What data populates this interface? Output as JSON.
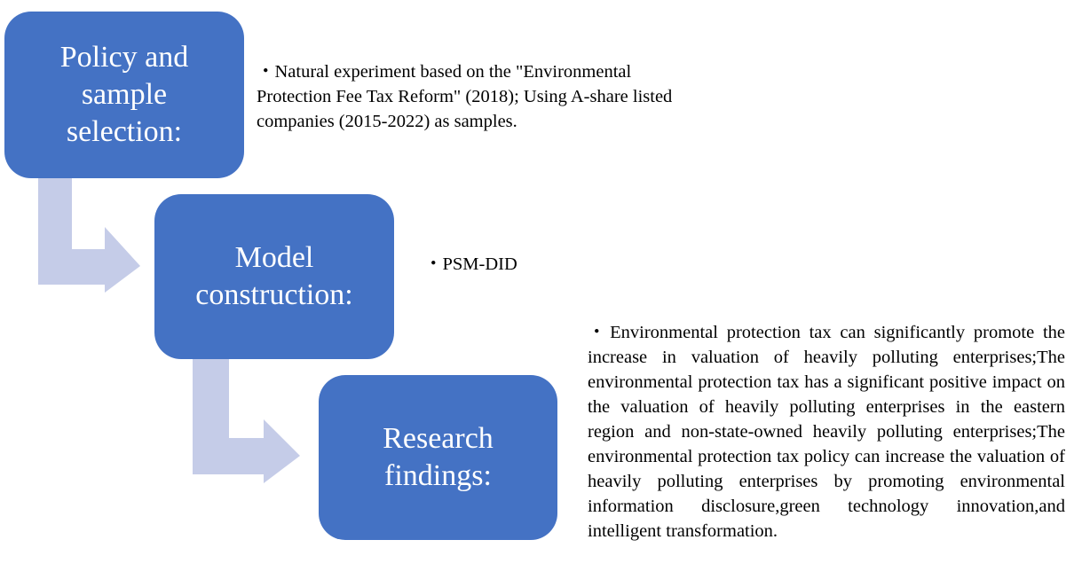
{
  "colors": {
    "box_fill": "#4472c4",
    "arrow_fill": "#c5cce8",
    "note_text": "#000000"
  },
  "steps": [
    {
      "title": "Policy and\nsample\nselection:",
      "description": "・Natural experiment based on the \"Environmental Protection Fee Tax Reform\" (2018); Using A-share listed companies (2015-2022) as  samples."
    },
    {
      "title": "Model\nconstruction:",
      "description": "・PSM-DID"
    },
    {
      "title": "Research\nfindings:",
      "description": "・Environmental protection tax can significantly promote the increase in valuation of heavily polluting enterprises;The environmental protection tax has a significant positive impact on the valuation of heavily polluting enterprises in the eastern region and non-state-owned heavily polluting enterprises;The environmental protection tax policy can increase the valuation of heavily polluting enterprises by promoting environmental information disclosure,green technology innovation,and intelligent transformation."
    }
  ]
}
